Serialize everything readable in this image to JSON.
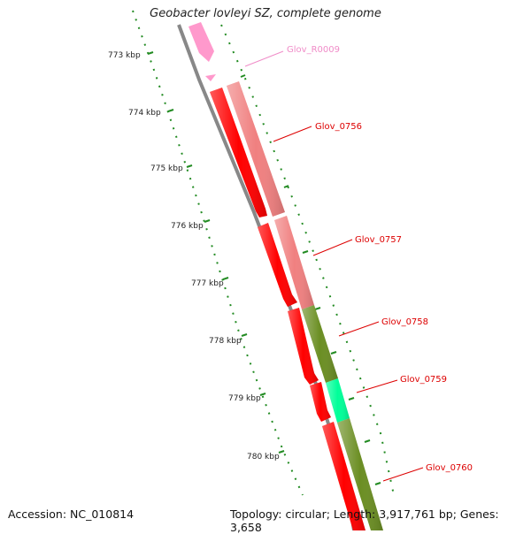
{
  "title": "Geobacter lovleyi SZ, complete genome",
  "footer": {
    "accession": "Accession: NC_010814",
    "summary": "Topology: circular; Length: 3,917,761 bp; Genes: 3,658"
  },
  "kbp_labels": [
    "773 kbp",
    "774 kbp",
    "775 kbp",
    "776 kbp",
    "777 kbp",
    "778 kbp",
    "779 kbp",
    "780 kbp"
  ],
  "gene_labels": [
    {
      "text": "Glov_R0009",
      "color": "#f08cc8"
    },
    {
      "text": "Glov_0756",
      "color": "#dd0000"
    },
    {
      "text": "Glov_0757",
      "color": "#dd0000"
    },
    {
      "text": "Glov_0758",
      "color": "#dd0000"
    },
    {
      "text": "Glov_0759",
      "color": "#dd0000"
    },
    {
      "text": "Glov_0760",
      "color": "#dd0000"
    }
  ],
  "colors": {
    "forward_cds": "#ff0000",
    "cog_salmon": "#f08080",
    "cog_olive": "#6b8e23",
    "cog_aqua": "#00ff99",
    "rna": "#ff99cc",
    "backbone": "#888888",
    "ticks": "#228b22"
  }
}
